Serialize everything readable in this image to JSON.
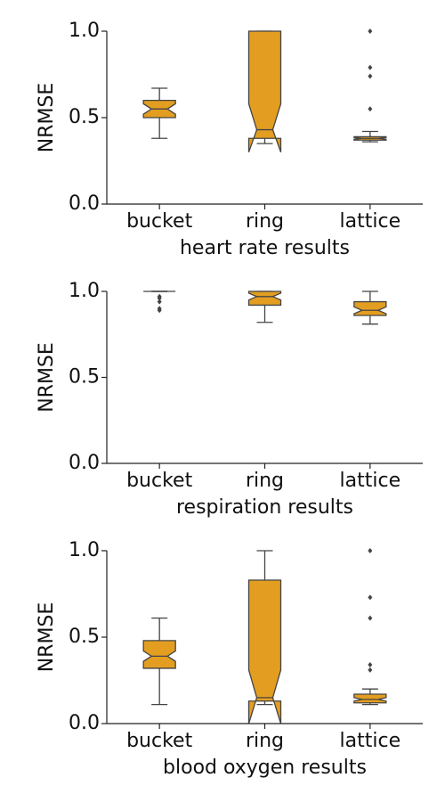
{
  "chart_data": [
    {
      "type": "box",
      "xlabel": "heart rate results",
      "ylabel": "NRMSE",
      "categories": [
        "bucket",
        "ring",
        "lattice"
      ],
      "color": "#e39e21",
      "ylim": [
        0,
        1
      ],
      "yticks": [
        {
          "value": 0,
          "label": "0.0"
        },
        {
          "value": 0.5,
          "label": "0.5"
        },
        {
          "value": 1,
          "label": "1.0"
        }
      ],
      "boxes": [
        {
          "whislo": 0.38,
          "q1": 0.5,
          "med": 0.55,
          "q3": 0.6,
          "whishi": 0.67,
          "notch": [
            0.52,
            0.58
          ],
          "fliers": []
        },
        {
          "whislo": 0.35,
          "q1": 0.38,
          "med": 0.43,
          "q3": 1.0,
          "whishi": 1.0,
          "notch": [
            0.3,
            0.58
          ],
          "fliers": []
        },
        {
          "whislo": 0.36,
          "q1": 0.37,
          "med": 0.38,
          "q3": 0.39,
          "whishi": 0.42,
          "notch": [
            0.375,
            0.385
          ],
          "fliers": [
            0.55,
            0.74,
            0.79,
            1.0
          ]
        }
      ]
    },
    {
      "type": "box",
      "xlabel": "respiration results",
      "ylabel": "NRMSE",
      "categories": [
        "bucket",
        "ring",
        "lattice"
      ],
      "color": "#e39e21",
      "ylim": [
        0,
        1
      ],
      "yticks": [
        {
          "value": 0,
          "label": "0.0"
        },
        {
          "value": 0.5,
          "label": "0.5"
        },
        {
          "value": 1,
          "label": "1.0"
        }
      ],
      "boxes": [
        {
          "whislo": 1.0,
          "q1": 1.0,
          "med": 1.0,
          "q3": 1.0,
          "whishi": 1.0,
          "notch": [
            1.0,
            1.0
          ],
          "fliers": [
            0.89,
            0.9,
            0.94,
            0.96,
            0.97
          ]
        },
        {
          "whislo": 0.82,
          "q1": 0.92,
          "med": 0.97,
          "q3": 1.0,
          "whishi": 1.0,
          "notch": [
            0.95,
            0.99
          ],
          "fliers": []
        },
        {
          "whislo": 0.81,
          "q1": 0.86,
          "med": 0.89,
          "q3": 0.94,
          "whishi": 1.0,
          "notch": [
            0.87,
            0.91
          ],
          "fliers": []
        }
      ]
    },
    {
      "type": "box",
      "xlabel": "blood oxygen results",
      "ylabel": "NRMSE",
      "categories": [
        "bucket",
        "ring",
        "lattice"
      ],
      "color": "#e39e21",
      "ylim": [
        0,
        1
      ],
      "yticks": [
        {
          "value": 0,
          "label": "0.0"
        },
        {
          "value": 0.5,
          "label": "0.5"
        },
        {
          "value": 1,
          "label": "1.0"
        }
      ],
      "boxes": [
        {
          "whislo": 0.11,
          "q1": 0.32,
          "med": 0.39,
          "q3": 0.48,
          "whishi": 0.61,
          "notch": [
            0.36,
            0.42
          ],
          "fliers": []
        },
        {
          "whislo": 0.11,
          "q1": 0.13,
          "med": 0.15,
          "q3": 0.83,
          "whishi": 1.0,
          "notch": [
            0.0,
            0.31
          ],
          "fliers": []
        },
        {
          "whislo": 0.11,
          "q1": 0.12,
          "med": 0.14,
          "q3": 0.17,
          "whishi": 0.2,
          "notch": [
            0.13,
            0.15
          ],
          "fliers": [
            0.31,
            0.34,
            0.61,
            0.73,
            1.0
          ]
        }
      ]
    }
  ]
}
